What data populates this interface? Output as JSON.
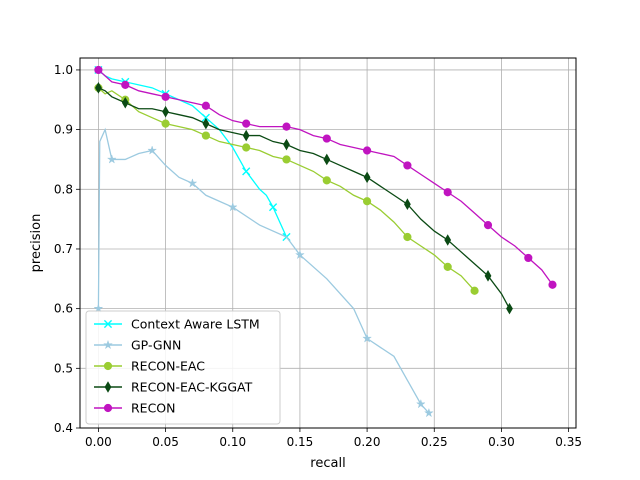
{
  "chart_data": {
    "type": "line",
    "xlabel": "recall",
    "ylabel": "precision",
    "xlim": [
      -0.0137,
      0.3555
    ],
    "ylim": [
      0.4,
      1.02
    ],
    "xticks": [
      0.0,
      0.05,
      0.1,
      0.15,
      0.2,
      0.25,
      0.3,
      0.35
    ],
    "xtick_labels": [
      "0.00",
      "0.05",
      "0.10",
      "0.15",
      "0.20",
      "0.25",
      "0.30",
      "0.35"
    ],
    "yticks": [
      0.4,
      0.5,
      0.6,
      0.7,
      0.8,
      0.9,
      1.0
    ],
    "ytick_labels": [
      "0.4",
      "0.5",
      "0.6",
      "0.7",
      "0.8",
      "0.9",
      "1.0"
    ],
    "grid": true,
    "legend_position": "lower-left",
    "series": [
      {
        "name": "Context Aware LSTM",
        "color": "#00ffff",
        "marker": "x",
        "points": [
          [
            0.0,
            1.0
          ],
          [
            0.005,
            0.99
          ],
          [
            0.01,
            0.985
          ],
          [
            0.02,
            0.98
          ],
          [
            0.03,
            0.975
          ],
          [
            0.04,
            0.97
          ],
          [
            0.05,
            0.96
          ],
          [
            0.06,
            0.95
          ],
          [
            0.07,
            0.94
          ],
          [
            0.08,
            0.92
          ],
          [
            0.09,
            0.9
          ],
          [
            0.1,
            0.87
          ],
          [
            0.11,
            0.83
          ],
          [
            0.12,
            0.8
          ],
          [
            0.125,
            0.79
          ],
          [
            0.13,
            0.77
          ],
          [
            0.135,
            0.745
          ],
          [
            0.14,
            0.72
          ]
        ]
      },
      {
        "name": "GP-GNN",
        "color": "#9ccae0",
        "marker": "*",
        "points": [
          [
            0.0,
            0.6
          ],
          [
            0.001,
            0.88
          ],
          [
            0.005,
            0.9
          ],
          [
            0.01,
            0.85
          ],
          [
            0.02,
            0.85
          ],
          [
            0.03,
            0.86
          ],
          [
            0.04,
            0.865
          ],
          [
            0.05,
            0.84
          ],
          [
            0.06,
            0.82
          ],
          [
            0.07,
            0.81
          ],
          [
            0.08,
            0.79
          ],
          [
            0.09,
            0.78
          ],
          [
            0.1,
            0.77
          ],
          [
            0.12,
            0.74
          ],
          [
            0.14,
            0.72
          ],
          [
            0.15,
            0.69
          ],
          [
            0.17,
            0.65
          ],
          [
            0.19,
            0.6
          ],
          [
            0.2,
            0.55
          ],
          [
            0.22,
            0.52
          ],
          [
            0.23,
            0.48
          ],
          [
            0.24,
            0.44
          ],
          [
            0.246,
            0.425
          ]
        ]
      },
      {
        "name": "RECON-EAC",
        "color": "#9acd32",
        "marker": "o",
        "points": [
          [
            0.0,
            0.97
          ],
          [
            0.005,
            0.96
          ],
          [
            0.01,
            0.965
          ],
          [
            0.02,
            0.95
          ],
          [
            0.03,
            0.93
          ],
          [
            0.04,
            0.92
          ],
          [
            0.05,
            0.91
          ],
          [
            0.06,
            0.905
          ],
          [
            0.07,
            0.9
          ],
          [
            0.08,
            0.89
          ],
          [
            0.09,
            0.88
          ],
          [
            0.1,
            0.875
          ],
          [
            0.11,
            0.87
          ],
          [
            0.12,
            0.865
          ],
          [
            0.13,
            0.855
          ],
          [
            0.14,
            0.85
          ],
          [
            0.15,
            0.84
          ],
          [
            0.16,
            0.83
          ],
          [
            0.17,
            0.815
          ],
          [
            0.18,
            0.805
          ],
          [
            0.19,
            0.79
          ],
          [
            0.2,
            0.78
          ],
          [
            0.21,
            0.765
          ],
          [
            0.22,
            0.745
          ],
          [
            0.23,
            0.72
          ],
          [
            0.24,
            0.705
          ],
          [
            0.25,
            0.69
          ],
          [
            0.26,
            0.67
          ],
          [
            0.27,
            0.655
          ],
          [
            0.28,
            0.63
          ]
        ]
      },
      {
        "name": "RECON-EAC-KGGAT",
        "color": "#0b4a14",
        "marker": "d",
        "points": [
          [
            0.0,
            0.97
          ],
          [
            0.005,
            0.965
          ],
          [
            0.01,
            0.955
          ],
          [
            0.02,
            0.945
          ],
          [
            0.03,
            0.935
          ],
          [
            0.04,
            0.935
          ],
          [
            0.05,
            0.93
          ],
          [
            0.06,
            0.925
          ],
          [
            0.07,
            0.92
          ],
          [
            0.08,
            0.91
          ],
          [
            0.09,
            0.9
          ],
          [
            0.1,
            0.895
          ],
          [
            0.11,
            0.89
          ],
          [
            0.12,
            0.89
          ],
          [
            0.13,
            0.88
          ],
          [
            0.14,
            0.875
          ],
          [
            0.15,
            0.865
          ],
          [
            0.16,
            0.86
          ],
          [
            0.17,
            0.85
          ],
          [
            0.18,
            0.84
          ],
          [
            0.19,
            0.83
          ],
          [
            0.2,
            0.82
          ],
          [
            0.21,
            0.805
          ],
          [
            0.22,
            0.79
          ],
          [
            0.23,
            0.775
          ],
          [
            0.24,
            0.75
          ],
          [
            0.25,
            0.73
          ],
          [
            0.26,
            0.715
          ],
          [
            0.27,
            0.695
          ],
          [
            0.28,
            0.675
          ],
          [
            0.29,
            0.655
          ],
          [
            0.3,
            0.625
          ],
          [
            0.306,
            0.6
          ]
        ]
      },
      {
        "name": "RECON",
        "color": "#c014c0",
        "marker": "o",
        "points": [
          [
            0.0,
            1.0
          ],
          [
            0.005,
            0.99
          ],
          [
            0.01,
            0.98
          ],
          [
            0.02,
            0.975
          ],
          [
            0.03,
            0.965
          ],
          [
            0.04,
            0.96
          ],
          [
            0.05,
            0.955
          ],
          [
            0.06,
            0.95
          ],
          [
            0.07,
            0.945
          ],
          [
            0.08,
            0.94
          ],
          [
            0.09,
            0.925
          ],
          [
            0.1,
            0.915
          ],
          [
            0.11,
            0.91
          ],
          [
            0.12,
            0.905
          ],
          [
            0.13,
            0.905
          ],
          [
            0.14,
            0.905
          ],
          [
            0.15,
            0.9
          ],
          [
            0.16,
            0.89
          ],
          [
            0.17,
            0.885
          ],
          [
            0.18,
            0.875
          ],
          [
            0.19,
            0.87
          ],
          [
            0.2,
            0.865
          ],
          [
            0.21,
            0.86
          ],
          [
            0.22,
            0.855
          ],
          [
            0.23,
            0.84
          ],
          [
            0.24,
            0.825
          ],
          [
            0.25,
            0.81
          ],
          [
            0.26,
            0.795
          ],
          [
            0.27,
            0.78
          ],
          [
            0.28,
            0.76
          ],
          [
            0.29,
            0.74
          ],
          [
            0.3,
            0.72
          ],
          [
            0.31,
            0.705
          ],
          [
            0.32,
            0.685
          ],
          [
            0.33,
            0.665
          ],
          [
            0.338,
            0.64
          ]
        ]
      }
    ]
  }
}
